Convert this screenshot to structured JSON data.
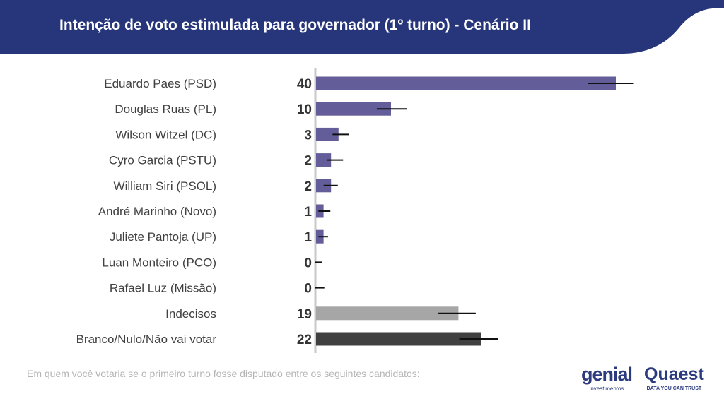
{
  "header": {
    "title": "Intenção de voto estimulada para governador (1º turno) - Cenário II"
  },
  "footnote": "Em quem você votaria se o primeiro turno fosse disputado entre os seguintes candidatos:",
  "logos": {
    "genial": "genial",
    "genial_sub": "investimentos",
    "quaest": "Quaest",
    "quaest_sub": "DATA YOU CAN TRUST"
  },
  "colors": {
    "header": "#27367a",
    "candidate": "#635e9a",
    "undecided": "#a6a6a6",
    "blank": "#404040"
  },
  "chart_data": {
    "type": "bar",
    "orientation": "horizontal",
    "title": "Intenção de voto estimulada para governador (1º turno) - Cenário II",
    "xlim": [
      0,
      40
    ],
    "categories": [
      "Eduardo Paes (PSD)",
      "Douglas Ruas (PL)",
      "Wilson Witzel (DC)",
      "Cyro Garcia (PSTU)",
      "William Siri (PSOL)",
      "André Marinho (Novo)",
      "Juliete Pantoja (UP)",
      "Luan Monteiro (PCO)",
      "Rafael Luz (Missão)",
      "Indecisos",
      "Branco/Nulo/Não vai votar"
    ],
    "values": [
      40,
      10,
      3,
      2,
      2,
      1,
      1,
      0,
      0,
      19,
      22
    ],
    "error_low": [
      36.4,
      8.2,
      2.3,
      1.5,
      1.1,
      0.4,
      0.4,
      0,
      0,
      16.4,
      19.2
    ],
    "error_high": [
      42.5,
      12.2,
      4.5,
      3.7,
      3.0,
      2.0,
      1.7,
      0.9,
      1.2,
      21.4,
      24.4
    ],
    "bar_kind": [
      "candidate",
      "candidate",
      "candidate",
      "candidate",
      "candidate",
      "candidate",
      "candidate",
      "candidate",
      "candidate",
      "undecided",
      "blank"
    ]
  }
}
